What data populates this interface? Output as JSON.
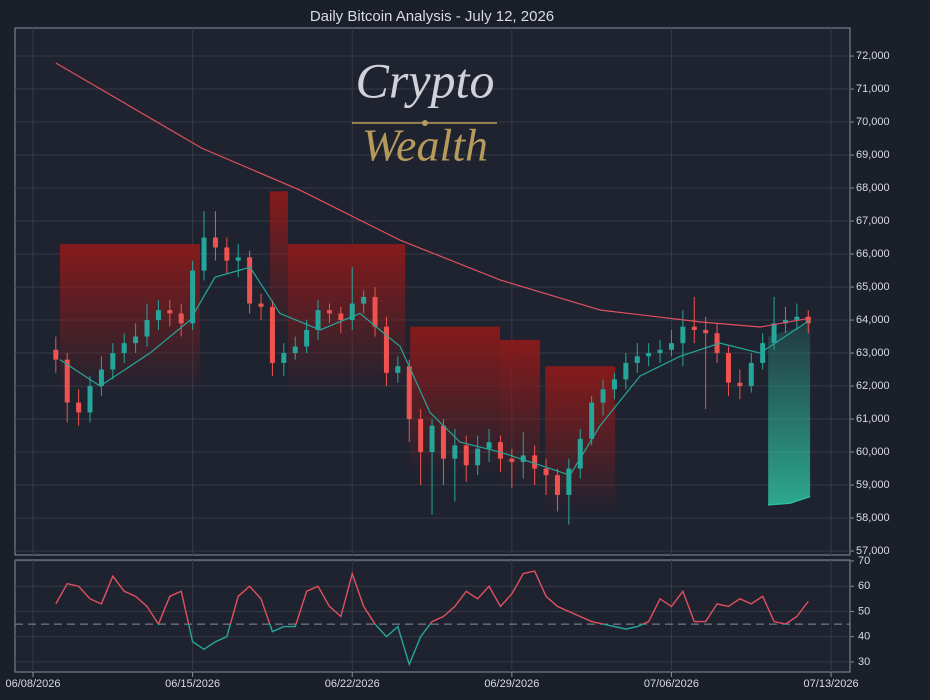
{
  "chart_data": [
    {
      "type": "candlestick",
      "title": "Daily Bitcoin Analysis - July 12, 2026",
      "watermark": [
        "Crypto",
        "Wealth"
      ],
      "x": [
        1,
        1.5,
        2,
        2.5,
        3,
        3.5,
        4,
        4.5,
        5,
        5.5,
        6,
        6.5,
        7,
        7.5,
        8,
        8.5,
        9,
        9.5,
        10,
        10.5,
        11,
        11.5,
        12,
        12.5,
        13,
        13.5,
        14,
        14.5,
        15,
        15.5,
        16,
        16.5,
        17,
        17.5,
        18,
        18.5,
        19,
        19.5,
        20,
        20.5,
        21,
        21.5,
        22,
        22.5,
        23,
        23.5,
        24,
        24.5,
        25,
        25.5,
        26,
        26.5,
        27,
        27.5,
        28,
        28.5,
        29,
        29.5,
        30,
        30.5,
        31,
        31.5,
        32,
        32.5,
        33,
        33.5,
        34
      ],
      "open": [
        63100,
        62800,
        61500,
        61200,
        62000,
        62500,
        63000,
        63300,
        63500,
        64000,
        64300,
        64200,
        63900,
        65500,
        66500,
        66200,
        65800,
        65900,
        64500,
        64400,
        62700,
        63000,
        63200,
        63700,
        64300,
        64200,
        64000,
        64500,
        64700,
        63800,
        62400,
        62600,
        61000,
        60000,
        60800,
        59800,
        60200,
        59600,
        60100,
        60300,
        59800,
        59700,
        59900,
        59500,
        59300,
        58700,
        59500,
        60400,
        61500,
        61900,
        62200,
        62700,
        62900,
        63000,
        63100,
        63300,
        63800,
        63700,
        63600,
        63000,
        62100,
        62000,
        62700,
        63300,
        63900,
        64000,
        64100
      ],
      "high": [
        63500,
        63000,
        61900,
        62300,
        62900,
        63300,
        63600,
        63900,
        64500,
        64600,
        64600,
        64500,
        65800,
        67300,
        67300,
        66500,
        66300,
        66100,
        64800,
        64600,
        63300,
        63500,
        64000,
        64600,
        64500,
        64400,
        65600,
        64900,
        65000,
        64100,
        62900,
        62800,
        61300,
        61000,
        61000,
        60700,
        60500,
        60500,
        60700,
        60500,
        60100,
        60600,
        60200,
        59800,
        59500,
        59800,
        60700,
        61700,
        62200,
        62400,
        63000,
        63300,
        63300,
        63400,
        63700,
        64300,
        64700,
        64100,
        63900,
        63200,
        62500,
        63000,
        63600,
        64700,
        64400,
        64500,
        64300
      ],
      "low": [
        62400,
        60900,
        60800,
        60900,
        61700,
        62200,
        62700,
        63000,
        63200,
        63700,
        63800,
        63500,
        63700,
        65200,
        65800,
        65400,
        65300,
        64200,
        64000,
        62300,
        62300,
        62800,
        63000,
        63400,
        63900,
        63600,
        63700,
        64200,
        63500,
        62000,
        62100,
        60300,
        59000,
        58100,
        59000,
        58500,
        59100,
        59300,
        59700,
        59400,
        58900,
        59200,
        59000,
        58700,
        58200,
        57800,
        59200,
        60200,
        61100,
        61600,
        61900,
        62400,
        62600,
        62700,
        62900,
        62600,
        63300,
        61300,
        62700,
        61700,
        61600,
        61800,
        62500,
        63100,
        63600,
        63700,
        63600
      ],
      "close": [
        62800,
        61500,
        61200,
        62000,
        62500,
        63000,
        63300,
        63500,
        64000,
        64300,
        64200,
        63900,
        65500,
        66500,
        66200,
        65800,
        65900,
        64500,
        64400,
        62700,
        63000,
        63200,
        63700,
        64300,
        64200,
        64000,
        64500,
        64700,
        63800,
        62400,
        62600,
        61000,
        60000,
        60800,
        59800,
        60200,
        59600,
        60100,
        60300,
        59800,
        59700,
        59900,
        59500,
        59300,
        58700,
        59500,
        60400,
        61500,
        61900,
        62200,
        62700,
        62900,
        63000,
        63100,
        63300,
        63800,
        63700,
        63600,
        63000,
        62100,
        62000,
        62700,
        63300,
        63900,
        64000,
        64100,
        63900
      ],
      "up_color": "#26a69a",
      "down_color": "#ef5350",
      "lines": [
        {
          "color": "#e0505e",
          "x": [
            1,
            7.4,
            11.7,
            16.1,
            20.5,
            24.9,
            29.3,
            31.9,
            34.1
          ],
          "values": [
            71790,
            69210,
            67940,
            66420,
            65210,
            64300,
            63940,
            63790,
            64060
          ]
        },
        {
          "color": "#26a69a",
          "x": [
            1.18,
            2.94,
            5.13,
            6.89,
            7.98,
            9.52,
            10.83,
            12.59,
            14.34,
            16.1,
            17.41,
            18.73,
            20.48,
            22.24,
            23.55,
            24.87,
            26.62,
            28.38,
            30.13,
            31.89,
            33.64,
            34.08
          ],
          "values": [
            62800,
            62000,
            63000,
            64000,
            65300,
            65600,
            64200,
            63700,
            64200,
            63200,
            61200,
            60300,
            60000,
            59600,
            59300,
            60800,
            62300,
            62900,
            63300,
            63000,
            63800,
            64000
          ]
        }
      ],
      "resistance_color": "#8b1a1a",
      "resistance": [
        {
          "start": 1.18,
          "end": 7.32,
          "top": 66300
        },
        {
          "start": 10.39,
          "end": 11.18,
          "top": 67900
        },
        {
          "start": 11.18,
          "end": 16.32,
          "top": 66300
        },
        {
          "start": 16.54,
          "end": 20.48,
          "top": 63800
        },
        {
          "start": 20.48,
          "end": 22.24,
          "top": 63400
        },
        {
          "start": 22.46,
          "end": 25.53,
          "top": 62600
        }
      ],
      "support_color": "#2fbf9f",
      "support": {
        "x": [
          32.24,
          33.2,
          34.08
        ],
        "upper": [
          63500,
          63700,
          63900
        ],
        "lower": [
          58400,
          58450,
          58650
        ]
      },
      "xlim": [
        -0.79,
        35.83
      ],
      "xticks": [
        {
          "value": 0,
          "label": "06/08/2026"
        },
        {
          "value": 7,
          "label": "06/15/2026"
        },
        {
          "value": 14,
          "label": "06/22/2026"
        },
        {
          "value": 21,
          "label": "06/29/2026"
        },
        {
          "value": 28,
          "label": "07/06/2026"
        },
        {
          "value": 35,
          "label": "07/13/2026"
        }
      ],
      "ylim": [
        56880,
        72850
      ],
      "yticks": [
        {
          "value": 57000,
          "label": "57,000"
        },
        {
          "value": 58000,
          "label": "58,000"
        },
        {
          "value": 59000,
          "label": "59,000"
        },
        {
          "value": 60000,
          "label": "60,000"
        },
        {
          "value": 61000,
          "label": "61,000"
        },
        {
          "value": 62000,
          "label": "62,000"
        },
        {
          "value": 63000,
          "label": "63,000"
        },
        {
          "value": 64000,
          "label": "64,000"
        },
        {
          "value": 65000,
          "label": "65,000"
        },
        {
          "value": 66000,
          "label": "66,000"
        },
        {
          "value": 67000,
          "label": "67,000"
        },
        {
          "value": 68000,
          "label": "68,000"
        },
        {
          "value": 69000,
          "label": "69,000"
        },
        {
          "value": 70000,
          "label": "70,000"
        },
        {
          "value": 71000,
          "label": "71,000"
        },
        {
          "value": 72000,
          "label": "72,000"
        }
      ],
      "grid": true
    },
    {
      "type": "line",
      "values": [
        53,
        61,
        60,
        55,
        53,
        64,
        58,
        56,
        52,
        45,
        56,
        58,
        38,
        35,
        38,
        40,
        56,
        60,
        55,
        42,
        44,
        44,
        58,
        60,
        52,
        48,
        65,
        52,
        45,
        40,
        44,
        29,
        40,
        46,
        48,
        52,
        58,
        55,
        60,
        52,
        57,
        65,
        66,
        56,
        52,
        50,
        48,
        46,
        45,
        44,
        43,
        44,
        46,
        55,
        52,
        58,
        46,
        46,
        53,
        52,
        55,
        53,
        56,
        46,
        45,
        48,
        54
      ],
      "threshold": 45,
      "above_color": "#e0505e",
      "below_color": "#26a69a",
      "ylim": [
        26,
        70.4
      ],
      "yticks": [
        30,
        40,
        50,
        60,
        70
      ],
      "grid": true
    }
  ]
}
